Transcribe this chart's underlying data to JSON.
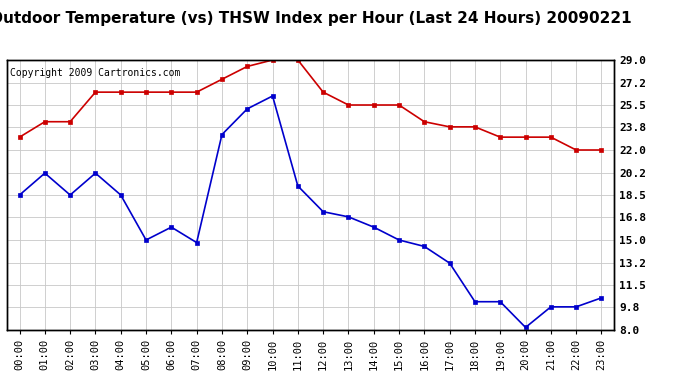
{
  "title": "Outdoor Temperature (vs) THSW Index per Hour (Last 24 Hours) 20090221",
  "copyright_text": "Copyright 2009 Cartronics.com",
  "hours": [
    "00:00",
    "01:00",
    "02:00",
    "03:00",
    "04:00",
    "05:00",
    "06:00",
    "07:00",
    "08:00",
    "09:00",
    "10:00",
    "11:00",
    "12:00",
    "13:00",
    "14:00",
    "15:00",
    "16:00",
    "17:00",
    "18:00",
    "19:00",
    "20:00",
    "21:00",
    "22:00",
    "23:00"
  ],
  "temp_red": [
    23.0,
    24.2,
    24.2,
    26.5,
    26.5,
    26.5,
    26.5,
    26.5,
    27.5,
    28.5,
    29.0,
    29.0,
    26.5,
    25.5,
    25.5,
    25.5,
    24.2,
    23.8,
    23.8,
    23.0,
    23.0,
    23.0,
    22.0,
    22.0
  ],
  "thsw_blue": [
    18.5,
    20.2,
    18.5,
    20.2,
    18.5,
    15.0,
    16.0,
    14.8,
    23.2,
    25.2,
    26.2,
    19.2,
    17.2,
    16.8,
    16.0,
    15.0,
    14.5,
    13.2,
    10.2,
    10.2,
    8.2,
    9.8,
    9.8,
    10.5
  ],
  "ylim": [
    8.0,
    29.0
  ],
  "yticks_right": [
    29.0,
    27.2,
    25.5,
    23.8,
    22.0,
    20.2,
    18.5,
    16.8,
    15.0,
    13.2,
    11.5,
    9.8,
    8.0
  ],
  "yticks_vals": [
    8.0,
    9.8,
    11.5,
    13.2,
    15.0,
    16.8,
    18.5,
    20.2,
    22.0,
    23.8,
    25.5,
    27.2,
    29.0
  ],
  "red_color": "#cc0000",
  "blue_color": "#0000cc",
  "bg_color": "#ffffff",
  "grid_color": "#c8c8c8",
  "title_fontsize": 11,
  "copyright_fontsize": 7,
  "tick_fontsize": 8,
  "xtick_fontsize": 7.5
}
